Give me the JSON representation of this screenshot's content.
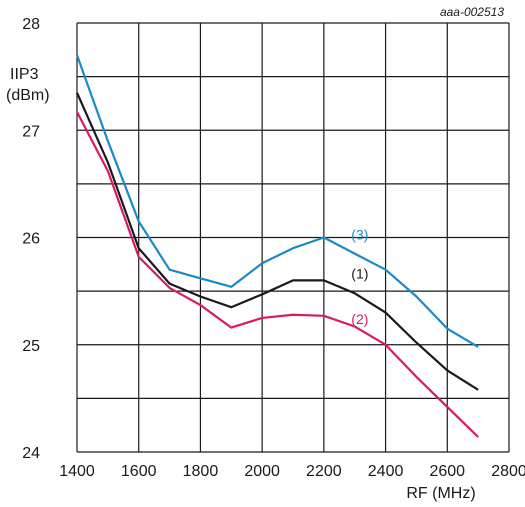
{
  "chart_data": {
    "type": "line",
    "figure_id": "aaa-002513",
    "xlabel": "RF (MHz)",
    "ylabel_line1": "IIP3",
    "ylabel_line2": "(dBm)",
    "xlim": [
      1400,
      2800
    ],
    "ylim": [
      24,
      28
    ],
    "x_ticks": [
      "1400",
      "1600",
      "1800",
      "2000",
      "2200",
      "2400",
      "2600",
      "2800"
    ],
    "y_ticks": [
      "24",
      "25",
      "26",
      "27",
      "28"
    ],
    "grid": true,
    "series": [
      {
        "name": "(3)",
        "color": "#1a8ac6",
        "x": [
          1400,
          1500,
          1600,
          1700,
          1800,
          1900,
          2000,
          2100,
          2200,
          2300,
          2400,
          2500,
          2600,
          2700
        ],
        "values": [
          27.7,
          26.9,
          26.15,
          25.7,
          25.62,
          25.54,
          25.76,
          25.9,
          26.0,
          25.85,
          25.7,
          25.45,
          25.15,
          24.98
        ]
      },
      {
        "name": "(1)",
        "color": "#1a1a1a",
        "x": [
          1400,
          1500,
          1600,
          1700,
          1800,
          1900,
          2000,
          2100,
          2200,
          2300,
          2400,
          2500,
          2600,
          2700
        ],
        "values": [
          27.35,
          26.7,
          25.9,
          25.57,
          25.45,
          25.35,
          25.47,
          25.6,
          25.6,
          25.48,
          25.3,
          25.02,
          24.76,
          24.58
        ]
      },
      {
        "name": "(2)",
        "color": "#d81b60",
        "x": [
          1400,
          1500,
          1600,
          1700,
          1800,
          1900,
          2000,
          2100,
          2200,
          2300,
          2400,
          2500,
          2600,
          2700
        ],
        "values": [
          27.17,
          26.62,
          25.82,
          25.53,
          25.37,
          25.16,
          25.25,
          25.28,
          25.27,
          25.17,
          25.0,
          24.7,
          24.42,
          24.14
        ]
      }
    ]
  }
}
